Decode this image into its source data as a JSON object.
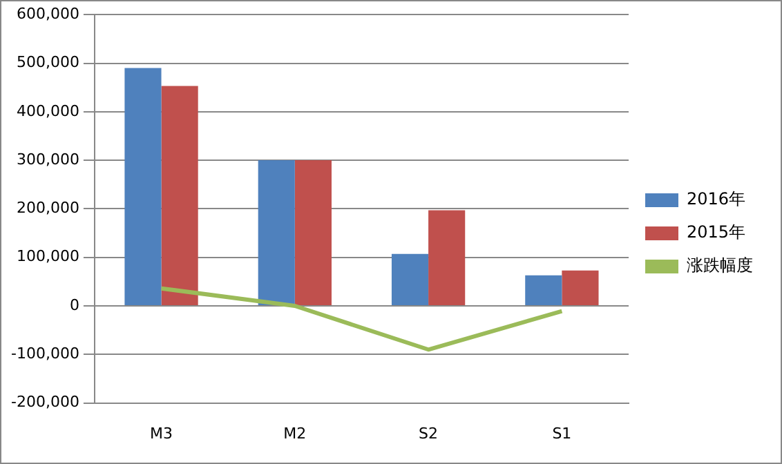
{
  "chart_data": {
    "type": "bar",
    "categories": [
      "M3",
      "M2",
      "S2",
      "S1"
    ],
    "series": [
      {
        "name": "2016年",
        "color": "#4f81bd",
        "values": [
          490000,
          300000,
          107000,
          63000
        ]
      },
      {
        "name": "2015年",
        "color": "#c0504d",
        "values": [
          453000,
          300000,
          197000,
          73000
        ]
      },
      {
        "name": "涨跌幅度",
        "type": "line",
        "color": "#9bbb59",
        "values": [
          36000,
          0,
          -90000,
          -11000
        ]
      }
    ],
    "ylim": [
      -200000,
      600000
    ],
    "yticks": [
      {
        "value": -200000,
        "label": "-200,000"
      },
      {
        "value": -100000,
        "label": "-100,000"
      },
      {
        "value": 0,
        "label": "0"
      },
      {
        "value": 100000,
        "label": "100,000"
      },
      {
        "value": 200000,
        "label": "200,000"
      },
      {
        "value": 300000,
        "label": "300,000"
      },
      {
        "value": 400000,
        "label": "400,000"
      },
      {
        "value": 500000,
        "label": "500,000"
      },
      {
        "value": 600000,
        "label": "600,000"
      }
    ],
    "grid": "y",
    "legend": "right",
    "marker": "none"
  }
}
